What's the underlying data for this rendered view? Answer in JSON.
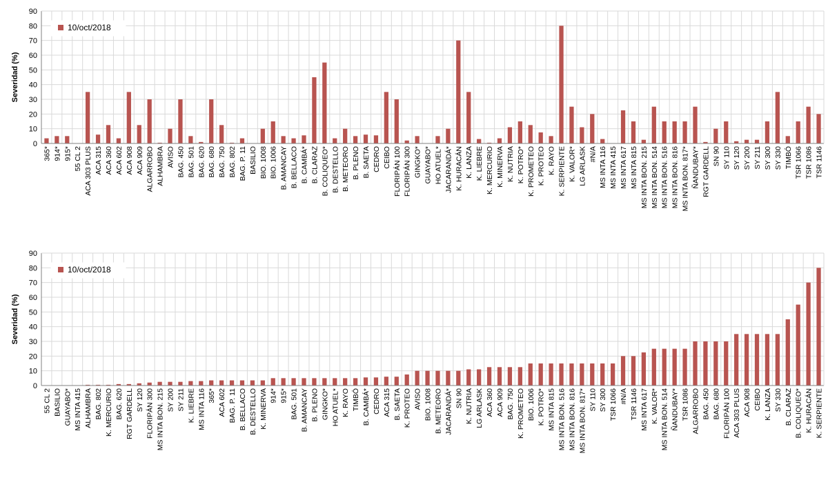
{
  "colors": {
    "bar": "#b85450",
    "grid": "#d9d9d9",
    "axis": "#808080"
  },
  "chart_data": [
    {
      "type": "bar",
      "title": "",
      "xlabel": "",
      "ylabel": "Severidad (%)",
      "ylim": [
        0,
        90
      ],
      "yticks": [
        0,
        10,
        20,
        30,
        40,
        50,
        60,
        70,
        80,
        90
      ],
      "grid": true,
      "legend_position": "top-left",
      "series": [
        {
          "name": "10/oct/2018",
          "color": "#b85450"
        }
      ],
      "categories": [
        "365*",
        "914*",
        "915*",
        "55 CL 2",
        "ACA 303 PLUS",
        "ACA 315",
        "ACA 360",
        "ACA 602",
        "ACA 908",
        "ACA 909",
        "ALGARROBO",
        "ALHAMBRA",
        "AVISO",
        "BAG. 450",
        "BAG. 501",
        "BAG. 620",
        "BAG. 680",
        "BAG. 750",
        "BAG. 802",
        "BAG. P. 11",
        "BASILIO",
        "BIO. 1008",
        "BIO. 1006",
        "B. AMANCAY",
        "B. BELLACO",
        "B. CAMBÁ*",
        "B. CLARAZ",
        "B. COLIQUEO*",
        "B. DESTELLO",
        "B. METEORO",
        "B. PLENO",
        "B. SAETA",
        "CEDRO",
        "CEIBO",
        "FLORIPÁN 100",
        "FLORIPÁN 300",
        "GINGKO*",
        "GUAYABO*",
        "HO ATUEL*",
        "JACARANDÁ*",
        "K. HURACÁN",
        "K. LANZA",
        "K. LIEBRE",
        "K. MERCURIO",
        "K. MINERVA",
        "K. NUTRIA",
        "K. POTRO*",
        "K. PROMETEO",
        "K. PROTEO",
        "K. RAYO",
        "K. SERPIENTE",
        "K. VALOR*",
        "LG ARLASK",
        "#N/A",
        "MS INTA 116",
        "MS INTA 415",
        "MS INTA 617",
        "MS INTA 815",
        "MS INTA BON. 215",
        "MS INTA BON. 514",
        "MS INTA BON. 516",
        "MS INTA BON. 816",
        "MS INTA BON. 817*",
        "ÑANDUBAY*",
        "RGT GARDELL",
        "SN 90",
        "SY 110",
        "SY 120",
        "SY 200",
        "SY 211",
        "SY 300",
        "SY 330",
        "TIMBÓ",
        "TSR 1066",
        "TSR 1086",
        "TSR 1146"
      ],
      "values": [
        3.5,
        5,
        5,
        0,
        35,
        6,
        12.5,
        3.5,
        35,
        12.5,
        30,
        0.5,
        10,
        30,
        5,
        1,
        30,
        12.5,
        0.5,
        3.5,
        0,
        10,
        15,
        5,
        3.5,
        5.5,
        45,
        55,
        3.5,
        10,
        5,
        6,
        5.5,
        35,
        30,
        2,
        5,
        0,
        5,
        10,
        70,
        35,
        3,
        0.5,
        3.5,
        11,
        15,
        12.5,
        7.5,
        5,
        80,
        25,
        11,
        20,
        3,
        0,
        22.5,
        15,
        2.5,
        25,
        15,
        15,
        15,
        25,
        1,
        10,
        15,
        1.5,
        2.5,
        2.5,
        15,
        35,
        5,
        15,
        25,
        20
      ]
    },
    {
      "type": "bar",
      "title": "",
      "xlabel": "",
      "ylabel": "Severidad (%)",
      "ylim": [
        0,
        90
      ],
      "yticks": [
        0,
        10,
        20,
        30,
        40,
        50,
        60,
        70,
        80,
        90
      ],
      "grid": true,
      "legend_position": "top-left",
      "series": [
        {
          "name": "10/oct/2018",
          "color": "#b85450"
        }
      ],
      "categories": [
        "55 CL 2",
        "BASILIO",
        "GUAYABO*",
        "MS INTA 415",
        "ALHAMBRA",
        "BAG. 802",
        "K. MERCURIO",
        "BAG. 620",
        "RGT GARDELL",
        "SY 120",
        "FLORIPÁN 300",
        "MS INTA BON. 215",
        "SY 200",
        "SY 211",
        "K. LIEBRE",
        "MS INTA 116",
        "365*",
        "ACA 602",
        "BAG. P. 11",
        "B. BELLACO",
        "B. DESTELLO",
        "K. MINERVA",
        "914*",
        "915*",
        "BAG. 501",
        "B. AMANCAY",
        "B. PLENO",
        "GINGKO*",
        "HO ATUEL*",
        "K. RAYO",
        "TIMBÓ",
        "B. CAMBÁ*",
        "CEDRO",
        "ACA 315",
        "B. SAETA",
        "K. PROTEO",
        "AVISO",
        "BIO. 1008",
        "B. METEORO",
        "JACARANDÁ*",
        "SN 90",
        "K. NUTRIA",
        "LG ARLASK",
        "ACA 360",
        "ACA 909",
        "BAG. 750",
        "K. PROMETEO",
        "BIO. 1006",
        "K. POTRO*",
        "MS INTA 815",
        "MS INTA BON. 516",
        "MS INTA BON. 816",
        "MS INTA BON. 817*",
        "SY 110",
        "SY 300",
        "TSR 1066",
        "#N/A",
        "TSR 1146",
        "MS INTA 617",
        "K. VALOR*",
        "MS INTA BON. 514",
        "ÑANDUBAY*",
        "TSR 1086",
        "ALGARROBO",
        "BAG. 450",
        "BAG. 680",
        "FLORIPÁN 100",
        "ACA 303 PLUS",
        "ACA 908",
        "CEIBO",
        "K. LANZA",
        "SY 330",
        "B. CLARAZ",
        "B. COLIQUEO*",
        "K. HURACÁN",
        "K. SERPIENTE"
      ],
      "values": [
        0,
        0,
        0,
        0,
        0.5,
        0.5,
        0.5,
        1,
        1,
        1.5,
        2,
        2.5,
        2.5,
        2.5,
        3,
        3,
        3.5,
        3.5,
        3.5,
        3.5,
        3.5,
        3.5,
        5,
        5,
        5,
        5,
        5,
        5,
        5,
        5,
        5,
        5.5,
        5.5,
        6,
        6,
        7.5,
        10,
        10,
        10,
        10,
        10,
        11,
        11,
        12.5,
        12.5,
        12.5,
        12.5,
        15,
        15,
        15,
        15,
        15,
        15,
        15,
        15,
        15,
        20,
        20,
        22.5,
        25,
        25,
        25,
        25,
        30,
        30,
        30,
        30,
        35,
        35,
        35,
        35,
        35,
        45,
        55,
        70,
        80
      ]
    }
  ]
}
